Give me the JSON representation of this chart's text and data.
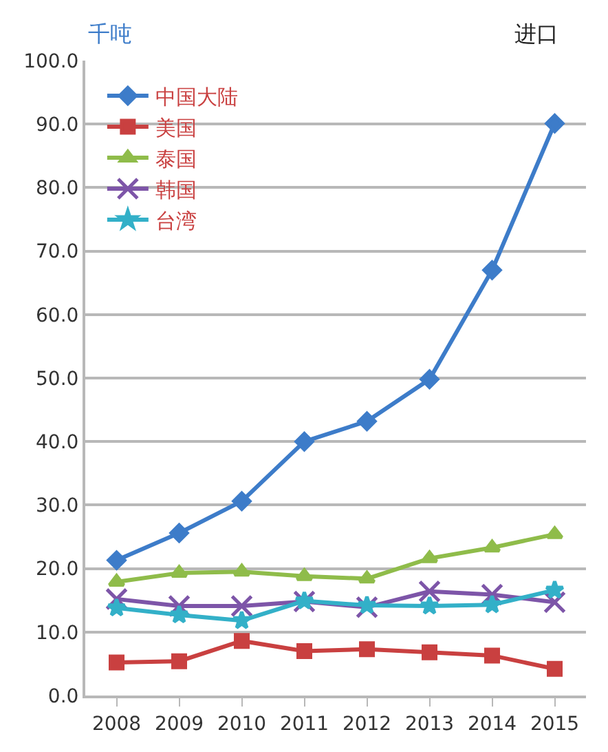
{
  "chart_data": {
    "type": "line",
    "title": "进口",
    "ylabel": "千吨",
    "categories": [
      "2008",
      "2009",
      "2010",
      "2011",
      "2012",
      "2013",
      "2014",
      "2015"
    ],
    "series": [
      {
        "name": "中国大陆",
        "color": "#3d7cc9",
        "marker": "diamond",
        "values": [
          21.3,
          25.6,
          30.6,
          40.0,
          43.2,
          49.8,
          67.0,
          90.1
        ]
      },
      {
        "name": "美国",
        "color": "#c94040",
        "marker": "square",
        "values": [
          5.2,
          5.4,
          8.6,
          7.0,
          7.3,
          6.8,
          6.3,
          4.2
        ]
      },
      {
        "name": "泰国",
        "color": "#8fbc4a",
        "marker": "triangle",
        "values": [
          17.9,
          19.3,
          19.5,
          18.8,
          18.4,
          21.6,
          23.3,
          25.4
        ]
      },
      {
        "name": "韩国",
        "color": "#7d55a8",
        "marker": "cross",
        "values": [
          15.2,
          14.1,
          14.1,
          14.8,
          13.9,
          16.4,
          15.9,
          14.7
        ]
      },
      {
        "name": "台湾",
        "color": "#33b0c8",
        "marker": "star",
        "values": [
          13.8,
          12.7,
          11.8,
          14.9,
          14.2,
          14.1,
          14.3,
          16.6
        ]
      }
    ],
    "ylim": [
      0,
      100
    ],
    "yticks": [
      {
        "value": 0,
        "label": "0.0"
      },
      {
        "value": 10,
        "label": "10.0"
      },
      {
        "value": 20,
        "label": "20.0"
      },
      {
        "value": 30,
        "label": "30.0"
      },
      {
        "value": 40,
        "label": "40.0"
      },
      {
        "value": 50,
        "label": "50.0"
      },
      {
        "value": 60,
        "label": "60.0"
      },
      {
        "value": 70,
        "label": "70.0"
      },
      {
        "value": 80,
        "label": "80.0"
      },
      {
        "value": 90,
        "label": "90.0"
      },
      {
        "value": 100,
        "label": "100.0"
      }
    ],
    "grid": "y",
    "legend": "top left",
    "line_style": "solid"
  }
}
